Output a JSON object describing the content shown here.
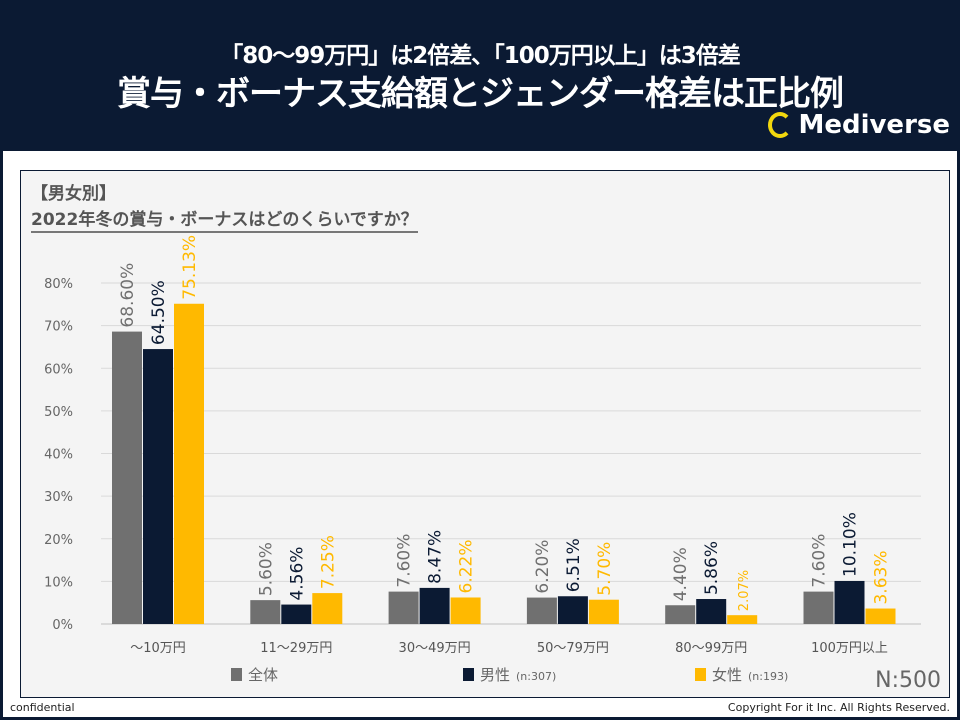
{
  "header": {
    "subtitle": "「80～99万円」は2倍差、「100万円以上」は3倍差",
    "title": "賞与・ボーナス支給額とジェンダー格差は正比例",
    "logo": "Mediverse"
  },
  "panel": {
    "category": "【男女別】",
    "question": "2022年冬の賞与・ボーナスはどのくらいですか？",
    "n_label": "N:500"
  },
  "footer": {
    "left": "confidential",
    "right": "Copyright For it Inc. All Rights Reserved."
  },
  "chart_data": {
    "type": "bar",
    "categories": [
      "～10万円",
      "11～29万円",
      "30～49万円",
      "50～79万円",
      "80～99万円",
      "100万円以上"
    ],
    "series": [
      {
        "name": "全体",
        "note": "",
        "color": "#707070",
        "values": [
          68.6,
          5.6,
          7.6,
          6.2,
          4.4,
          7.6
        ],
        "labels": [
          "68.60%",
          "5.60%",
          "7.60%",
          "6.20%",
          "4.40%",
          "7.60%"
        ]
      },
      {
        "name": "男性",
        "note": "(n:307)",
        "color": "#0b1a33",
        "values": [
          64.5,
          4.56,
          8.47,
          6.51,
          5.86,
          10.1
        ],
        "labels": [
          "64.50%",
          "4.56%",
          "8.47%",
          "6.51%",
          "5.86%",
          "10.10%"
        ]
      },
      {
        "name": "女性",
        "note": "(n:193)",
        "color": "#ffb900",
        "values": [
          75.13,
          7.25,
          6.22,
          5.7,
          2.07,
          3.63
        ],
        "labels": [
          "75.13%",
          "7.25%",
          "6.22%",
          "5.70%",
          "2.07%",
          "3.63%"
        ]
      }
    ],
    "yticks": [
      "0%",
      "10%",
      "20%",
      "30%",
      "40%",
      "50%",
      "60%",
      "70%",
      "80%"
    ],
    "ylim": [
      0,
      80
    ],
    "grid": true,
    "legend": "bottom"
  },
  "colors": {
    "navy": "#0b1a33",
    "accent": "#ffb900",
    "gray": "#707070"
  }
}
